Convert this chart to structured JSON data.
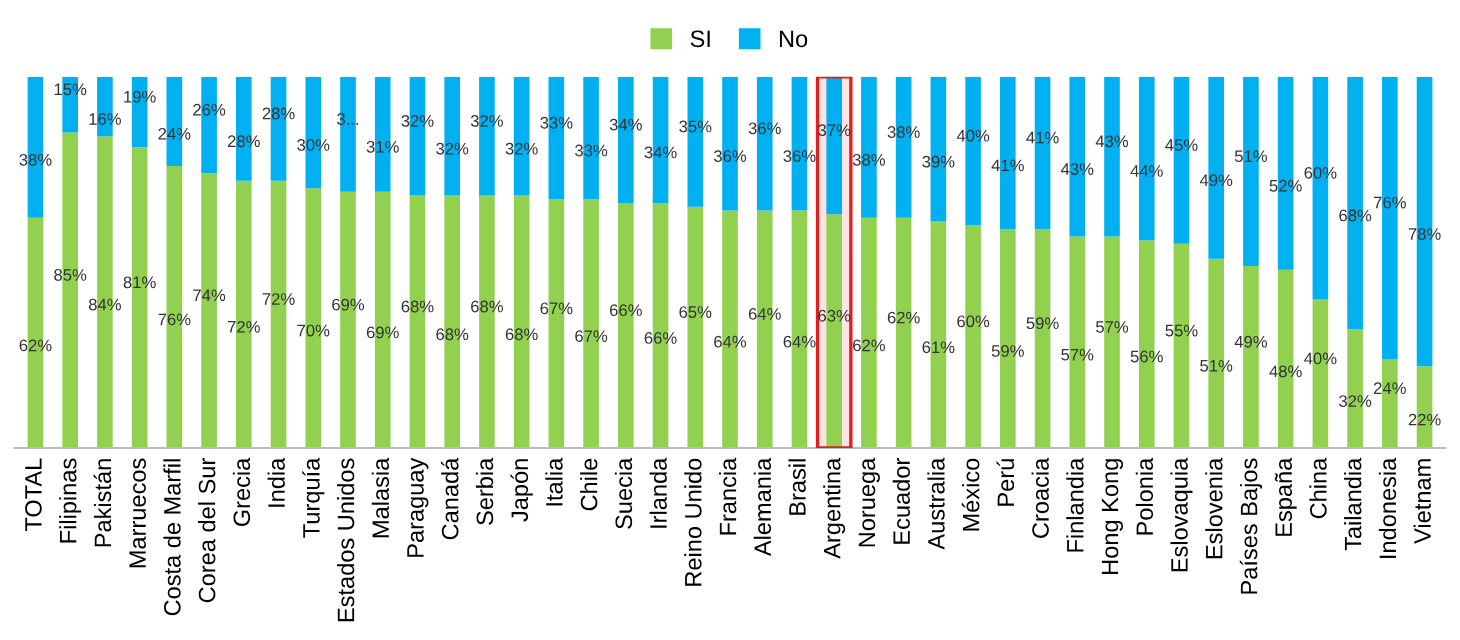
{
  "chart_data": {
    "type": "bar",
    "stacked": true,
    "categories": [
      "TOTAL",
      "Filipinas",
      "Pakistán",
      "Marruecos",
      "Costa de Marfil",
      "Corea del Sur",
      "Grecia",
      "India",
      "Turquía",
      "Estados Unidos",
      "Malasia",
      "Paraguay",
      "Canadá",
      "Serbia",
      "Japón",
      "Italia",
      "Chile",
      "Suecia",
      "Irlanda",
      "Reino Unido",
      "Francia",
      "Alemania",
      "Brasil",
      "Argentina",
      "Noruega",
      "Ecuador",
      "Australia",
      "México",
      "Perú",
      "Croacia",
      "Finlandia",
      "Hong Kong",
      "Polonia",
      "Eslovaquia",
      "Eslovenia",
      "Países Bajos",
      "España",
      "China",
      "Tailandia",
      "Indonesia",
      "Vietnam"
    ],
    "series": [
      {
        "name": "SI",
        "color": "#92d050",
        "values": [
          62,
          85,
          84,
          81,
          76,
          74,
          72,
          72,
          70,
          69,
          69,
          68,
          68,
          68,
          68,
          67,
          67,
          66,
          66,
          65,
          64,
          64,
          64,
          63,
          62,
          62,
          61,
          60,
          59,
          59,
          57,
          57,
          56,
          55,
          51,
          49,
          48,
          40,
          32,
          24,
          22
        ],
        "value_labels": [
          "62%",
          "85%",
          "84%",
          "81%",
          "76%",
          "74%",
          "72%",
          "72%",
          "70%",
          "69%",
          "69%",
          "68%",
          "68%",
          "68%",
          "68%",
          "67%",
          "67%",
          "66%",
          "66%",
          "65%",
          "64%",
          "64%",
          "64%",
          "63%",
          "62%",
          "62%",
          "61%",
          "60%",
          "59%",
          "59%",
          "57%",
          "57%",
          "56%",
          "55%",
          "51%",
          "49%",
          "48%",
          "40%",
          "32%",
          "24%",
          "22%"
        ]
      },
      {
        "name": "No",
        "color": "#00b0f0",
        "values": [
          38,
          15,
          16,
          19,
          24,
          26,
          28,
          28,
          30,
          31,
          31,
          32,
          32,
          32,
          32,
          33,
          33,
          34,
          34,
          35,
          36,
          36,
          36,
          37,
          38,
          38,
          39,
          40,
          41,
          41,
          43,
          43,
          44,
          45,
          49,
          51,
          52,
          60,
          68,
          76,
          78
        ],
        "value_labels": [
          "38%",
          "15%",
          "16%",
          "19%",
          "24%",
          "26%",
          "28%",
          "28%",
          "30%",
          "3...",
          "31%",
          "32%",
          "32%",
          "32%",
          "32%",
          "33%",
          "33%",
          "34%",
          "34%",
          "35%",
          "36%",
          "36%",
          "36%",
          "37%",
          "38%",
          "38%",
          "39%",
          "40%",
          "41%",
          "41%",
          "43%",
          "43%",
          "44%",
          "45%",
          "49%",
          "51%",
          "52%",
          "60%",
          "68%",
          "76%",
          "78%"
        ]
      }
    ],
    "ylim": [
      0,
      100
    ],
    "tick_labels": "x",
    "grid": false,
    "legend": "top",
    "bands": [
      {
        "axis": "x",
        "from": "Argentina",
        "to": "Argentina",
        "color": "#e02020"
      }
    ]
  }
}
